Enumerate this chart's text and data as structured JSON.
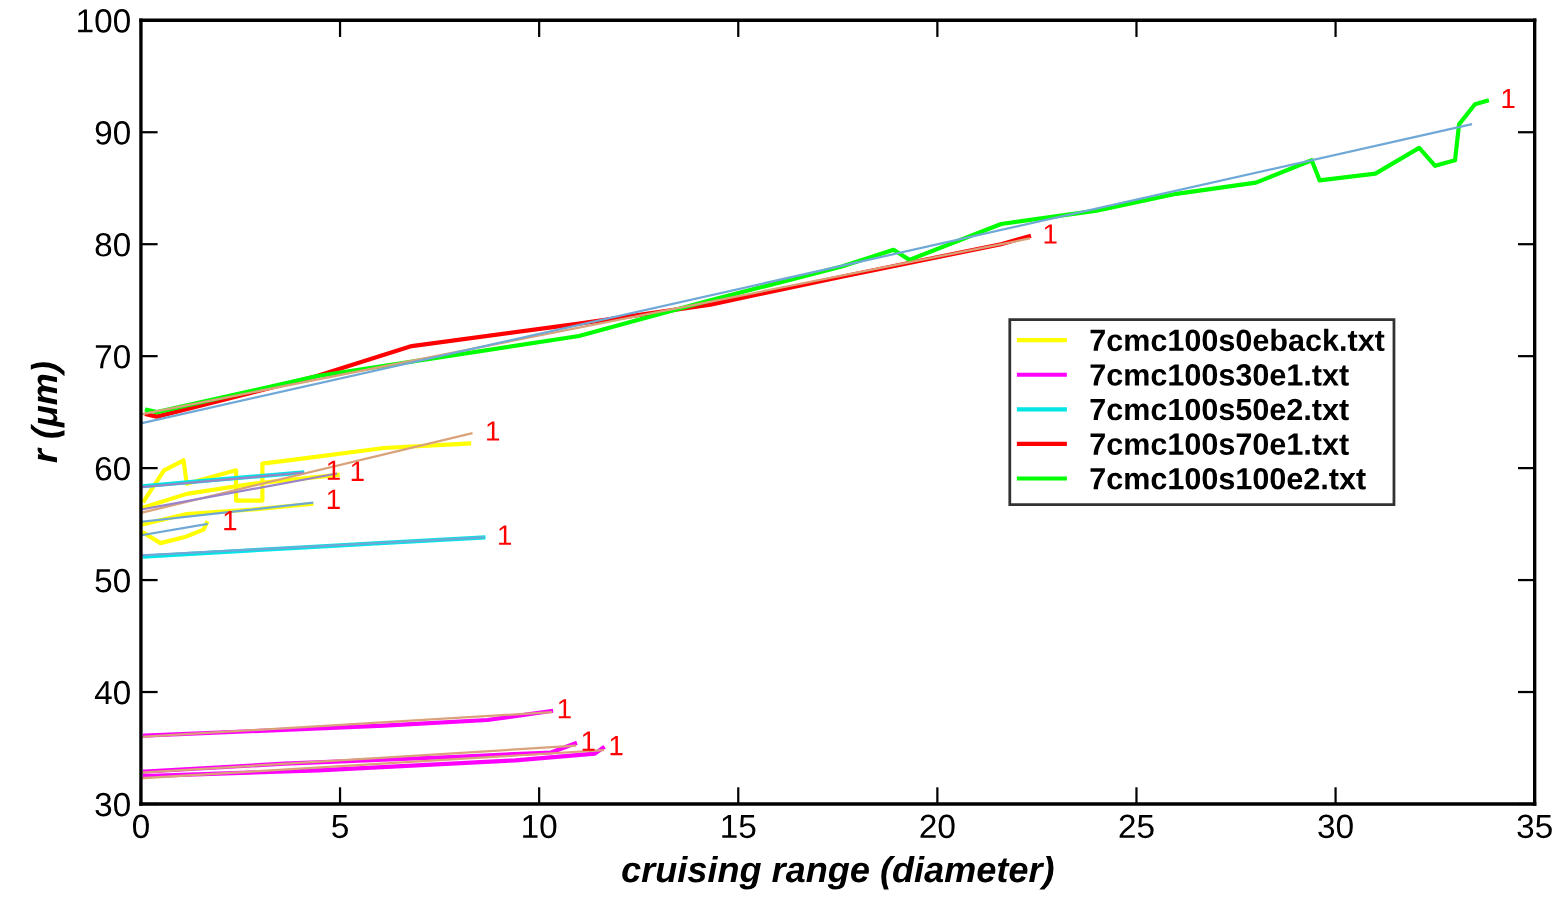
{
  "chart_data": {
    "type": "line",
    "xlabel": "cruising range (diameter)",
    "ylabel": "r (μm)",
    "xlim": [
      0,
      35
    ],
    "ylim": [
      30,
      100
    ],
    "xticks": [
      0,
      5,
      10,
      15,
      20,
      25,
      30,
      35
    ],
    "yticks": [
      30,
      40,
      50,
      60,
      70,
      80,
      90,
      100
    ],
    "grid": false,
    "legend": "right",
    "marker": "none",
    "line_style": "solid",
    "series": [
      {
        "name": "7cmc100s0eback.txt",
        "color": "#ffff00",
        "x": [
          0.08,
          0.58,
          1.07,
          1.15,
          2.39,
          2.39,
          3.05,
          3.05,
          3.95,
          6.1,
          8.24
        ],
        "values": [
          57.1,
          59.8,
          60.7,
          58.6,
          59.8,
          57.1,
          57.1,
          60.4,
          60.8,
          61.8,
          62.2
        ]
      },
      {
        "color": "#ffff00",
        "x": [
          0.08,
          1.15,
          2.8,
          4.94
        ],
        "values": [
          56.5,
          57.7,
          58.6,
          59.4
        ]
      },
      {
        "color": "#ffff00",
        "x": [
          0.08,
          1.15,
          2.8,
          4.28
        ],
        "values": [
          55.0,
          55.9,
          56.3,
          56.8
        ]
      },
      {
        "color": "#ffff00",
        "x": [
          0.08,
          0.49,
          1.15,
          1.57,
          1.65
        ],
        "values": [
          54.2,
          53.3,
          53.9,
          54.5,
          55.1
        ]
      },
      {
        "name": "7cmc100s30e1.txt",
        "color": "#ff00ff",
        "x": [
          0.1,
          6.1,
          8.7,
          10.3
        ],
        "values": [
          36.1,
          37.0,
          37.5,
          38.3
        ]
      },
      {
        "color": "#ff00ff",
        "x": [
          0.1,
          3.6,
          7.8,
          10.3,
          10.9
        ],
        "values": [
          32.9,
          33.6,
          34.2,
          34.6,
          35.4
        ]
      },
      {
        "color": "#ff00ff",
        "x": [
          0.1,
          4.45,
          9.4,
          11.4,
          11.6
        ],
        "values": [
          32.5,
          33.0,
          33.9,
          34.5,
          35.0
        ]
      },
      {
        "name": "7cmc100s50e2.txt",
        "color": "#00e5e5",
        "x": [
          0.1,
          2.0,
          4.0,
          6.0,
          8.6
        ],
        "values": [
          52.1,
          52.5,
          52.9,
          53.3,
          53.8
        ]
      },
      {
        "color": "#00e5e5",
        "x": [
          0.1,
          2.0,
          4.05
        ],
        "values": [
          58.4,
          59.0,
          59.6
        ]
      },
      {
        "name": "7cmc100s70e1.txt",
        "color": "#ff0000",
        "x": [
          0.15,
          0.4,
          4.4,
          6.8,
          11,
          14.3,
          17.6,
          21.6,
          22.3
        ],
        "values": [
          64.8,
          64.6,
          68.2,
          70.9,
          72.9,
          74.6,
          77.1,
          80.0,
          80.7
        ]
      },
      {
        "name": "7cmc100s100e2.txt",
        "color": "#00ff00",
        "x": [
          0.15,
          0.4,
          4.4,
          11,
          14.3,
          17.6,
          18.9,
          19.3,
          21.6,
          24,
          26,
          28,
          29.4,
          29.6,
          31,
          32.1,
          32.5,
          33,
          33.1,
          33.5,
          33.8
        ],
        "values": [
          65.2,
          65.0,
          68.2,
          71.8,
          75.0,
          78.0,
          79.5,
          78.6,
          81.8,
          83.0,
          84.5,
          85.5,
          87.5,
          85.7,
          86.3,
          88.6,
          87.0,
          87.5,
          90.7,
          92.5,
          92.8
        ]
      },
      {
        "color": "#d9a27a",
        "x": [
          0,
          8.3
        ],
        "values": [
          56.0,
          63.1
        ]
      },
      {
        "color": "#9a83c9",
        "x": [
          0,
          4.9
        ],
        "values": [
          56.3,
          59.5
        ]
      },
      {
        "color": "#6fa8d6",
        "x": [
          0,
          4.3
        ],
        "values": [
          55.2,
          56.9
        ]
      },
      {
        "color": "#6fa8d6",
        "x": [
          0,
          1.65
        ],
        "values": [
          54.0,
          55.0
        ]
      },
      {
        "color": "#d9a27a",
        "x": [
          0,
          10.3
        ],
        "values": [
          36.0,
          38.2
        ]
      },
      {
        "color": "#d9a27a",
        "x": [
          0,
          10.9
        ],
        "values": [
          32.8,
          35.2
        ]
      },
      {
        "color": "#d9a27a",
        "x": [
          0,
          11.6
        ],
        "values": [
          32.3,
          34.8
        ]
      },
      {
        "color": "#6fa8d6",
        "x": [
          0,
          8.6
        ],
        "values": [
          52.2,
          53.8
        ]
      },
      {
        "color": "#9a83c9",
        "x": [
          0,
          4.05
        ],
        "values": [
          58.3,
          59.6
        ]
      },
      {
        "color": "#d9a27a",
        "x": [
          0,
          22.3
        ],
        "values": [
          64.8,
          80.5
        ]
      },
      {
        "color": "#6fa8d6",
        "x": [
          0,
          33.4
        ],
        "values": [
          64.0,
          90.7
        ]
      }
    ],
    "annotations": [
      {
        "text": "1",
        "x": 8.5,
        "y": 63.1
      },
      {
        "text": "1",
        "x": 5.1,
        "y": 59.5
      },
      {
        "text": "1",
        "x": 4.5,
        "y": 57.0
      },
      {
        "text": "1",
        "x": 1.9,
        "y": 55.1
      },
      {
        "text": "1",
        "x": 10.3,
        "y": 38.3
      },
      {
        "text": "1",
        "x": 10.9,
        "y": 35.4
      },
      {
        "text": "1",
        "x": 11.6,
        "y": 35.0
      },
      {
        "text": "1",
        "x": 8.8,
        "y": 53.8
      },
      {
        "text": "1",
        "x": 4.5,
        "y": 59.6
      },
      {
        "text": "1",
        "x": 22.5,
        "y": 80.7
      },
      {
        "text": "1",
        "x": 34.0,
        "y": 92.8
      }
    ]
  }
}
